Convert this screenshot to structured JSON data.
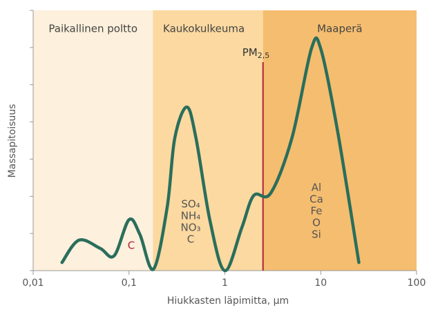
{
  "chart_data": {
    "type": "line",
    "x_label": "Hiukkasten läpimitta, µm",
    "y_label": "Massapitoisuus",
    "xscale": "log",
    "xlim": [
      0.01,
      100
    ],
    "xticks": [
      {
        "value": 0.01,
        "label": "0,01"
      },
      {
        "value": 0.1,
        "label": "0,1"
      },
      1,
      10,
      100
    ],
    "ylim": [
      0,
      7
    ],
    "yticks": [
      0,
      1,
      2,
      3,
      4,
      5,
      6,
      7
    ],
    "regions": [
      {
        "name": "Paikallinen poltto",
        "from": 0.01,
        "to": 0.178,
        "color": "#fdf0dc"
      },
      {
        "name": "Kaukokulkeuma",
        "from": 0.178,
        "to": 2.5,
        "color": "#fbd9a0"
      },
      {
        "name": "Maaperä",
        "from": 2.5,
        "to": 100,
        "color": "#f5bd6f"
      }
    ],
    "pm_line": {
      "value": 2.5,
      "main": "PM",
      "sub": "2,5",
      "color": "#b0203a"
    },
    "annotations": [
      {
        "lines": [
          "C"
        ],
        "color": "#b0203a"
      },
      {
        "lines": [
          "SO₄",
          "NH₄",
          "NO₃",
          "C"
        ],
        "color": "#555"
      },
      {
        "lines": [
          "Al",
          "Ca",
          "Fe",
          "O",
          "Si"
        ],
        "color": "#555"
      }
    ],
    "series": [
      {
        "name": "Massapitoisuus",
        "color": "#2a6e5c",
        "x": [
          0.02,
          0.03,
          0.05,
          0.07,
          0.1,
          0.13,
          0.18,
          0.25,
          0.3,
          0.4,
          0.5,
          0.7,
          1,
          1.5,
          2,
          3,
          5,
          8,
          10,
          15,
          25
        ],
        "values": [
          0.22,
          0.82,
          0.6,
          0.4,
          1.37,
          0.97,
          0.04,
          1.7,
          3.56,
          4.4,
          3.56,
          1.34,
          0,
          1.15,
          2.02,
          2.08,
          3.56,
          5.97,
          5.97,
          3.75,
          0.22
        ]
      }
    ]
  }
}
